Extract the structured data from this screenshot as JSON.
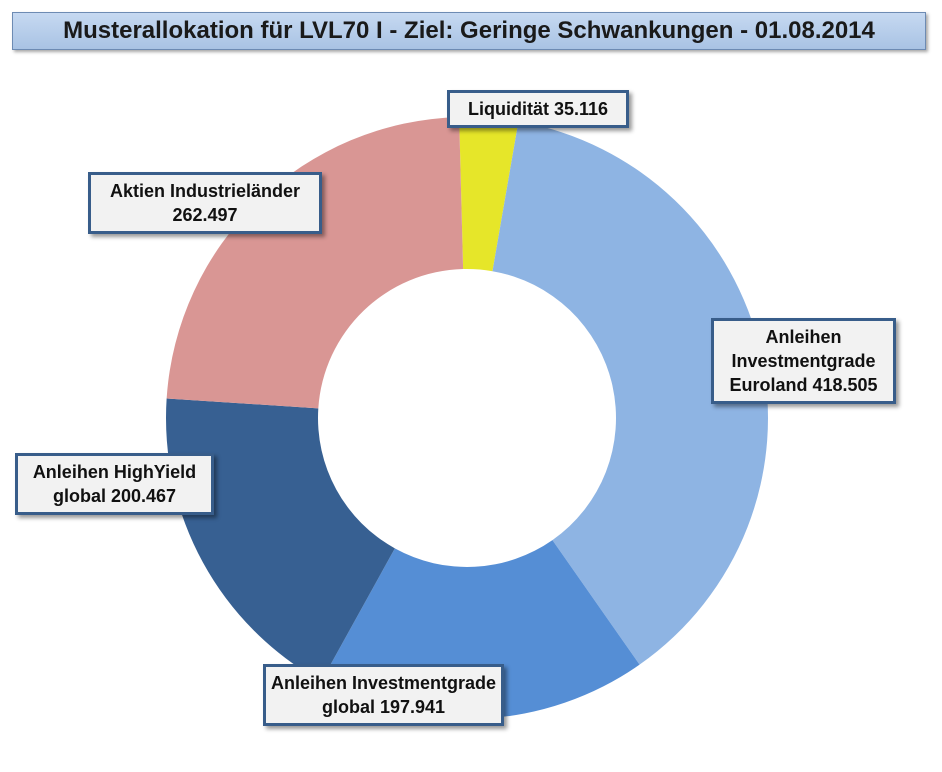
{
  "chart_data": {
    "type": "donut",
    "title": "Musterallokation für LVL70 I - Ziel: Geringe Schwankungen - 01.08.2014",
    "categories": [
      "Liquidität",
      "Anleihen Investmentgrade Euroland",
      "Anleihen Investmentgrade global",
      "Anleihen HighYield global",
      "Aktien Industrieländer"
    ],
    "values": [
      35.116,
      418.505,
      197.941,
      200.467,
      262.497
    ],
    "colors": [
      "#e6e629",
      "#8eb4e3",
      "#558ed5",
      "#376092",
      "#d99694"
    ]
  }
}
